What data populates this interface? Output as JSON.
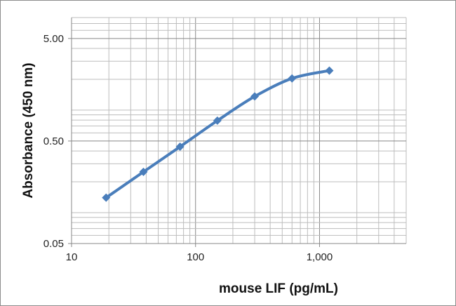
{
  "chart_data": {
    "type": "line",
    "title": "",
    "xlabel": "mouse LIF (pg/mL)",
    "ylabel": "Absorbance (450 nm)",
    "x_scale": "log",
    "y_scale": "log",
    "xlim": [
      10,
      5000
    ],
    "ylim": [
      0.05,
      8
    ],
    "x_ticks": [
      {
        "value": 10,
        "label": "10"
      },
      {
        "value": 100,
        "label": "100"
      },
      {
        "value": 1000,
        "label": "1,000"
      }
    ],
    "y_ticks": [
      {
        "value": 0.05,
        "label": "0.05"
      },
      {
        "value": 0.5,
        "label": "0.50"
      },
      {
        "value": 5,
        "label": "5.00"
      }
    ],
    "grid": true,
    "marker": "diamond",
    "line_smooth": true,
    "color": "#4a7ebb",
    "series": [
      {
        "x": [
          19,
          38,
          75,
          150,
          300,
          600,
          1200
        ],
        "y": [
          0.14,
          0.25,
          0.44,
          0.79,
          1.36,
          2.04,
          2.43
        ]
      }
    ]
  }
}
